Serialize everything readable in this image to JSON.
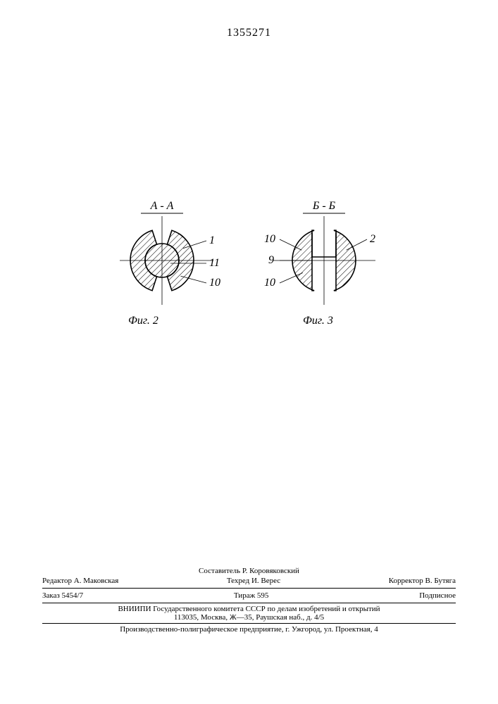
{
  "page_number": "1355271",
  "figure2": {
    "section_label": "А - А",
    "caption": "Фиг. 2",
    "callouts": {
      "top_right": "1",
      "mid_right": "11",
      "bot_right": "10"
    },
    "outer_radius": 45,
    "inner_radius": 24,
    "gap_half_angle_deg": 18,
    "hatch_spacing": 6,
    "hatch_angle_deg": 45,
    "stroke": "#000000",
    "stroke_width": 1.6
  },
  "figure3": {
    "section_label": "Б - Б",
    "caption": "Фиг. 3",
    "callouts": {
      "top_left": "10",
      "top_right": "2",
      "mid_left": "9",
      "bot_left": "10"
    },
    "outer_radius": 45,
    "slot_half_width": 17,
    "slot_depth": 30,
    "gap_half_angle_deg": 18,
    "hatch_spacing": 6,
    "hatch_angle_deg": 45,
    "stroke": "#000000",
    "stroke_width": 1.6
  },
  "footer": {
    "compiler": "Составитель Р. Коровяковский",
    "editor": "Редактор А. Маковская",
    "techred": "Техред И. Верес",
    "corrector": "Корректор В. Бутяга",
    "order": "Заказ 5454/7",
    "tirazh": "Тираж 595",
    "podpisnoe": "Подписное",
    "org1": "ВНИИПИ Государственного комитета СССР по делам изобретений и открытий",
    "addr1": "113035, Москва, Ж—35, Раушская наб., д. 4/5",
    "org2": "Производственно-полиграфическое предприятие, г. Ужгород, ул. Проектная, 4"
  }
}
